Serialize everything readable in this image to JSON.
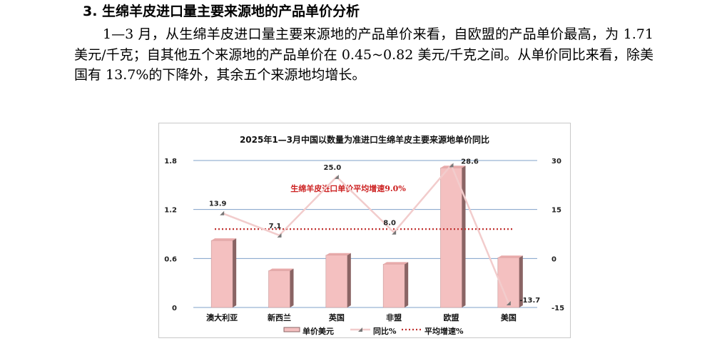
{
  "section": {
    "title": "3. 生绵羊皮进口量主要来源地的产品单价分析",
    "paragraph": "1—3 月，从生绵羊皮进口量主要来源地的产品单价来看，自欧盟的产品单价最高，为 1.71 美元/千克；自其他五个来源地的产品单价在 0.45~0.82 美元/千克之间。从单价同比来看，除美国有 13.7%的下降外，其余五个来源地均增长。"
  },
  "chart_data": {
    "type": "bar",
    "title": "2025年1—3月中国以数量为准进口生绵羊皮主要来源地单价同比",
    "categories": [
      "澳大利亚",
      "新西兰",
      "英国",
      "非盟",
      "欧盟",
      "美国"
    ],
    "series": [
      {
        "name": "单价美元",
        "type": "bar",
        "axis": "left",
        "values": [
          0.82,
          0.45,
          0.64,
          0.53,
          1.71,
          0.61
        ]
      },
      {
        "name": "同比%",
        "type": "line",
        "axis": "right",
        "values": [
          13.9,
          7.1,
          25.0,
          8.0,
          28.6,
          -13.7
        ],
        "labels": [
          "13.9",
          "7.1",
          "25.0",
          "8.0",
          "28.6",
          "-13.7"
        ]
      },
      {
        "name": "平均增速%",
        "type": "line",
        "axis": "right",
        "style": "dotted",
        "value": 9.0
      }
    ],
    "annotation": "生绵羊皮进口单价平均增速9.0%",
    "left_axis": {
      "min": 0,
      "max": 1.8,
      "ticks": [
        "0",
        "0.6",
        "1.2",
        "1.8"
      ]
    },
    "right_axis": {
      "min": -15,
      "max": 30,
      "ticks": [
        "-15",
        "0",
        "15",
        "30"
      ]
    },
    "grid": true,
    "legend_position": "bottom",
    "colors": {
      "bar": "#f4c0c0",
      "bar_side": "#8a6464",
      "yoy_line": "#f2cccc",
      "avg_line": "#c0302f",
      "grid": "#7fa1c8"
    }
  }
}
